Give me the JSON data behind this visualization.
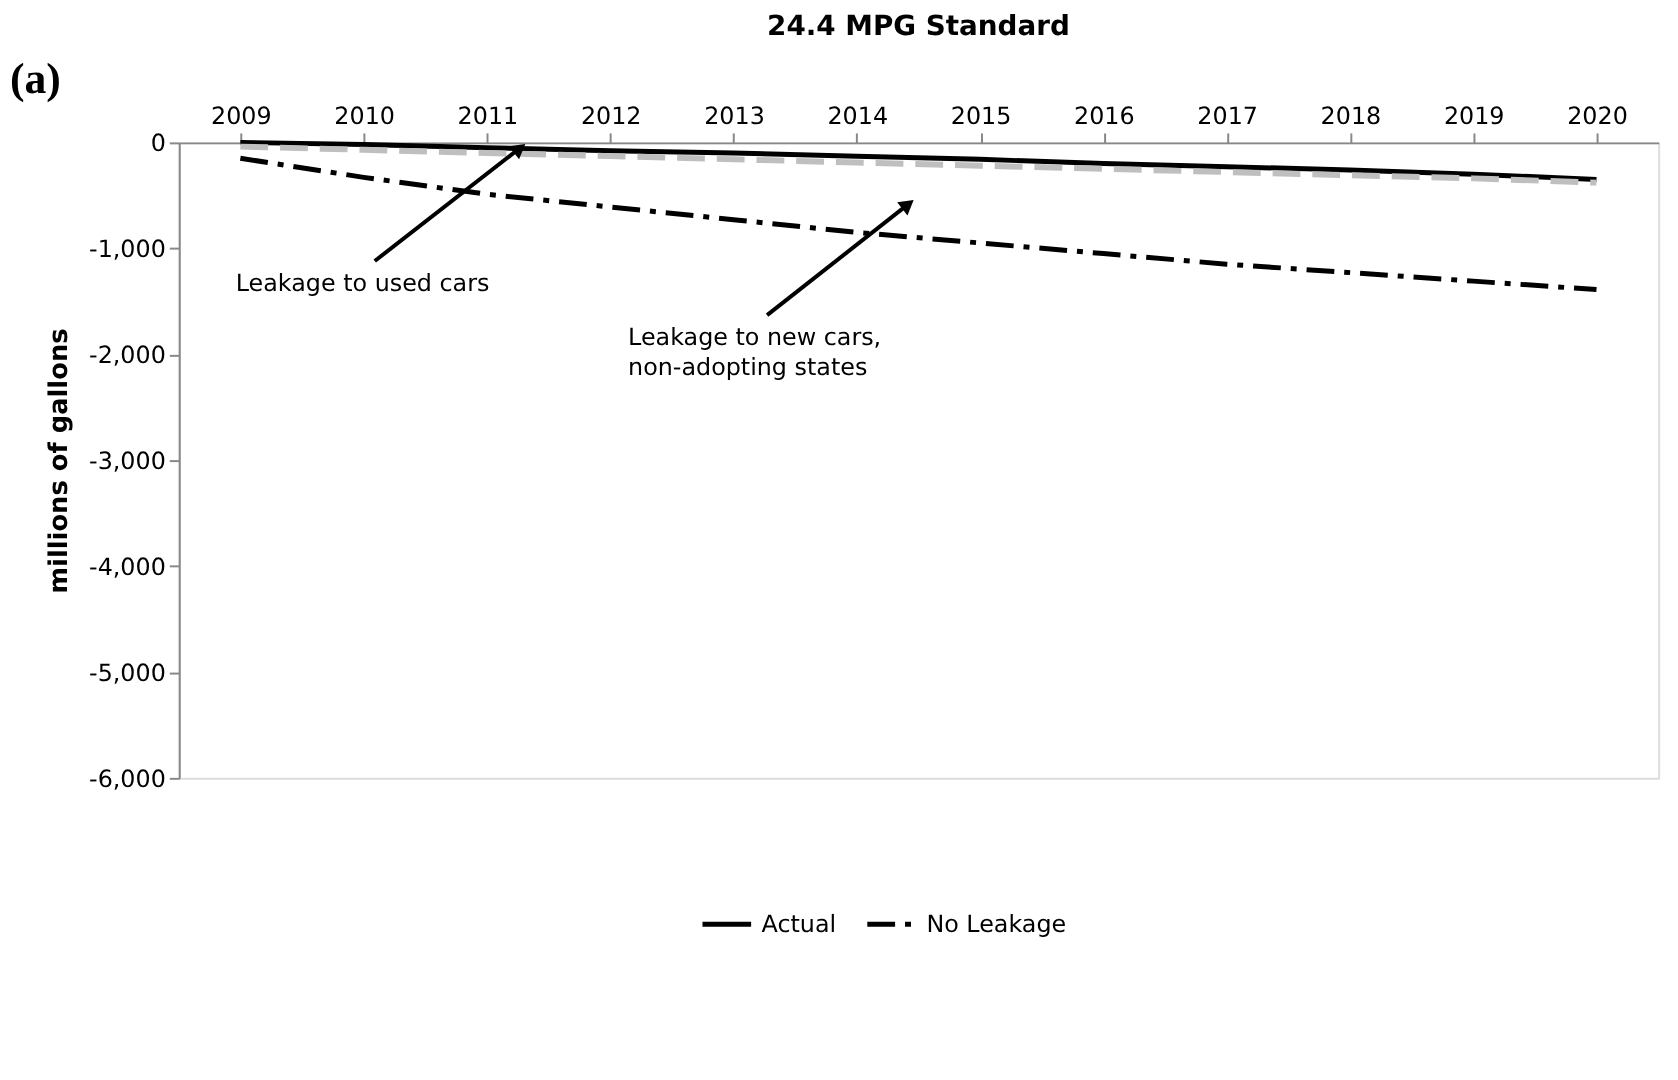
{
  "chart_data": {
    "type": "line",
    "title": "24.4 MPG Standard",
    "ylabel": "millions of gallons",
    "x": [
      2009,
      2010,
      2011,
      2012,
      2013,
      2014,
      2015,
      2016,
      2017,
      2018,
      2019,
      2020
    ],
    "series": [
      {
        "name": "Actual",
        "color": "#000000",
        "line_style": "solid",
        "values": [
          0,
          -20,
          -50,
          -80,
          -100,
          -130,
          -160,
          -200,
          -230,
          -260,
          -300,
          -350
        ]
      },
      {
        "name": "No Leakage",
        "color": "#000000",
        "line_style": "dashed",
        "values": [
          -150,
          -330,
          -490,
          -610,
          -730,
          -850,
          -950,
          -1050,
          -1150,
          -1230,
          -1310,
          -1390
        ]
      },
      {
        "color": "#bfbfbf",
        "line_style": "dashed",
        "values": [
          -40,
          -70,
          -100,
          -130,
          -160,
          -190,
          -220,
          -250,
          -280,
          -310,
          -340,
          -380
        ]
      }
    ],
    "xlim": [
      2008.5,
      2020.5
    ],
    "xticks": [
      2009,
      2010,
      2011,
      2012,
      2013,
      2014,
      2015,
      2016,
      2017,
      2018,
      2019,
      2020
    ],
    "ylim": [
      -6000,
      0
    ],
    "yticks": [
      0,
      {
        "value": -1000,
        "label": "-1,000"
      },
      {
        "value": -2000,
        "label": "-2,000"
      },
      {
        "value": -3000,
        "label": "-3,000"
      },
      {
        "value": -4000,
        "label": "-4,000"
      },
      {
        "value": -5000,
        "label": "-5,000"
      },
      {
        "value": -6000,
        "label": "-6,000"
      }
    ],
    "grid": false,
    "legend": "bottom",
    "marker": "none",
    "annotations": [
      "(a)",
      {
        "text": "Leakage to used cars",
        "x": 2011.25,
        "y": -70
      },
      {
        "text": "Leakage to new cars,\nnon-adopting states",
        "x": 2014.4,
        "y": -600
      }
    ]
  }
}
